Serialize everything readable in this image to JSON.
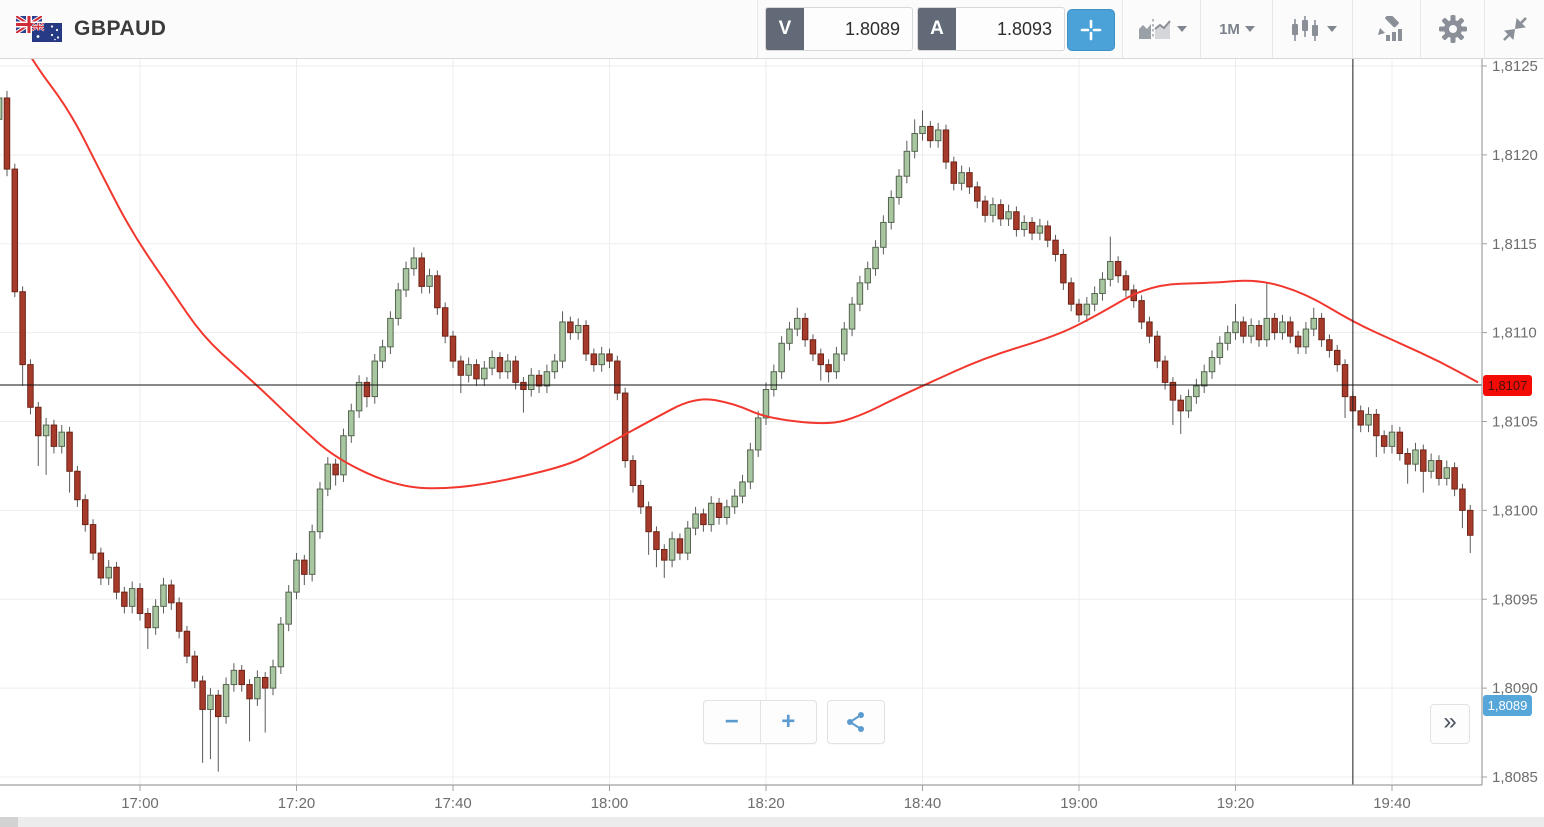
{
  "header": {
    "symbol": "GBPAUD",
    "bid": {
      "label": "V",
      "value": "1.8089"
    },
    "ask": {
      "label": "A",
      "value": "1.8093"
    },
    "timeframe": "1M",
    "accent_color": "#4ba2d8"
  },
  "controls": {
    "zoom_out_label": "−",
    "zoom_in_label": "+",
    "expand_label": "»"
  },
  "chart_data": {
    "type": "candlestick",
    "symbol": "GBPAUD",
    "interval": "1m",
    "start_time": "16:42",
    "price_base": 1.8,
    "unit": "values are pips (0.0001) above 1.8000",
    "ylim": [
      1.8085,
      1.8125
    ],
    "grid": true,
    "y_axis_labels": [
      {
        "pips": 125,
        "text": "1,8125"
      },
      {
        "pips": 120,
        "text": "1,8120"
      },
      {
        "pips": 115,
        "text": "1,8115"
      },
      {
        "pips": 110,
        "text": "1,8110"
      },
      {
        "pips": 105,
        "text": "1,8105"
      },
      {
        "pips": 100,
        "text": "1,8100"
      },
      {
        "pips": 95,
        "text": "1,8095"
      },
      {
        "pips": 90,
        "text": "1,8090"
      },
      {
        "pips": 85,
        "text": "1,8085"
      }
    ],
    "x_axis_labels": [
      {
        "minute": 18,
        "text": "17:00"
      },
      {
        "minute": 38,
        "text": "17:20"
      },
      {
        "minute": 58,
        "text": "17:40"
      },
      {
        "minute": 78,
        "text": "18:00"
      },
      {
        "minute": 98,
        "text": "18:20"
      },
      {
        "minute": 118,
        "text": "18:40"
      },
      {
        "minute": 138,
        "text": "19:00"
      },
      {
        "minute": 158,
        "text": "19:20"
      },
      {
        "minute": 178,
        "text": "19:40"
      }
    ],
    "current_price_line": {
      "pips": 107.05,
      "label": "1,8107",
      "line_color": "#111111",
      "badge_color": "#f50b06"
    },
    "bid_marker": {
      "pips": 89,
      "label": "1,8089",
      "badge_color": "#57a6da"
    },
    "vertical_line_minute": 173,
    "colors": {
      "up_fill": "#a8c7a1",
      "up_stroke": "#55644f",
      "down_fill": "#a73b2b",
      "down_stroke": "#6e2418",
      "wick": "#5a5a5a",
      "ma": "#f2382e",
      "grid": "#ededed",
      "axis": "#a0a0a0",
      "axis_text": "#6e6e6e"
    },
    "ma_line": {
      "name": "moving average",
      "color": "#f2382e",
      "points": [
        [
          0,
          128.5
        ],
        [
          4,
          125.4
        ],
        [
          9,
          122.5
        ],
        [
          13,
          119.0
        ],
        [
          17,
          115.6
        ],
        [
          22,
          112.4
        ],
        [
          26,
          109.8
        ],
        [
          31,
          107.8
        ],
        [
          34,
          106.6
        ],
        [
          38,
          104.9
        ],
        [
          43,
          102.9
        ],
        [
          51,
          101.3
        ],
        [
          58,
          101.2
        ],
        [
          66,
          101.8
        ],
        [
          73,
          102.6
        ],
        [
          76,
          103.3
        ],
        [
          83,
          105.0
        ],
        [
          89,
          106.4
        ],
        [
          94,
          106.0
        ],
        [
          98,
          105.2
        ],
        [
          106,
          104.8
        ],
        [
          110,
          105.3
        ],
        [
          115,
          106.4
        ],
        [
          118,
          107.0
        ],
        [
          126,
          108.6
        ],
        [
          135,
          109.8
        ],
        [
          140,
          110.9
        ],
        [
          147,
          112.7
        ],
        [
          155,
          112.8
        ],
        [
          161,
          113.0
        ],
        [
          167,
          112.2
        ],
        [
          173,
          110.6
        ],
        [
          179,
          109.4
        ],
        [
          184,
          108.4
        ],
        [
          189,
          107.2
        ]
      ]
    },
    "candles_format": "[open, high, low, close] in pips above 1.8000, one candle per minute from start_time",
    "candles": [
      [
        122.0,
        124.2,
        121.2,
        123.2
      ],
      [
        123.2,
        123.6,
        118.8,
        119.2
      ],
      [
        119.2,
        119.5,
        112.0,
        112.3
      ],
      [
        112.3,
        112.6,
        107.0,
        108.2
      ],
      [
        108.2,
        108.5,
        105.4,
        105.8
      ],
      [
        105.8,
        106.1,
        102.5,
        104.2
      ],
      [
        104.2,
        105.2,
        102.0,
        104.8
      ],
      [
        104.8,
        105.1,
        103.2,
        103.6
      ],
      [
        103.6,
        104.8,
        103.2,
        104.4
      ],
      [
        104.4,
        104.7,
        101.0,
        102.2
      ],
      [
        102.2,
        102.5,
        100.2,
        100.6
      ],
      [
        100.6,
        100.9,
        98.8,
        99.2
      ],
      [
        99.2,
        99.5,
        97.2,
        97.6
      ],
      [
        97.6,
        97.9,
        95.8,
        96.2
      ],
      [
        96.2,
        97.2,
        95.8,
        96.8
      ],
      [
        96.8,
        97.1,
        95.0,
        95.4
      ],
      [
        95.4,
        95.7,
        94.2,
        94.6
      ],
      [
        94.6,
        96.0,
        94.2,
        95.6
      ],
      [
        95.6,
        95.9,
        93.8,
        94.2
      ],
      [
        94.2,
        94.5,
        92.2,
        93.4
      ],
      [
        93.4,
        95.0,
        93.0,
        94.6
      ],
      [
        94.6,
        96.2,
        94.2,
        95.8
      ],
      [
        95.8,
        96.1,
        94.4,
        94.8
      ],
      [
        94.8,
        95.1,
        92.8,
        93.2
      ],
      [
        93.2,
        93.5,
        91.4,
        91.8
      ],
      [
        91.8,
        92.1,
        90.0,
        90.4
      ],
      [
        90.4,
        90.7,
        85.8,
        88.8
      ],
      [
        88.8,
        90.0,
        86.0,
        89.6
      ],
      [
        89.6,
        89.9,
        85.3,
        88.4
      ],
      [
        88.4,
        90.6,
        88.0,
        90.2
      ],
      [
        90.2,
        91.4,
        89.8,
        91.0
      ],
      [
        91.0,
        91.3,
        89.8,
        90.2
      ],
      [
        90.2,
        90.5,
        87.0,
        89.4
      ],
      [
        89.4,
        91.0,
        89.0,
        90.6
      ],
      [
        90.6,
        90.9,
        87.5,
        90.0
      ],
      [
        90.0,
        91.6,
        89.6,
        91.2
      ],
      [
        91.2,
        94.0,
        90.8,
        93.6
      ],
      [
        93.6,
        95.8,
        93.2,
        95.4
      ],
      [
        95.4,
        97.6,
        95.0,
        97.2
      ],
      [
        97.2,
        97.5,
        95.8,
        96.4
      ],
      [
        96.4,
        99.2,
        96.0,
        98.8
      ],
      [
        98.8,
        101.6,
        98.4,
        101.2
      ],
      [
        101.2,
        103.0,
        100.8,
        102.6
      ],
      [
        102.6,
        102.9,
        101.4,
        102.0
      ],
      [
        102.0,
        104.6,
        101.6,
        104.2
      ],
      [
        104.2,
        106.0,
        103.8,
        105.6
      ],
      [
        105.6,
        107.6,
        105.2,
        107.2
      ],
      [
        107.2,
        107.5,
        105.8,
        106.4
      ],
      [
        106.4,
        108.8,
        106.0,
        108.4
      ],
      [
        108.4,
        109.6,
        108.0,
        109.2
      ],
      [
        109.2,
        111.2,
        108.8,
        110.8
      ],
      [
        110.8,
        112.8,
        110.4,
        112.4
      ],
      [
        112.4,
        114.0,
        112.0,
        113.6
      ],
      [
        113.6,
        114.8,
        113.2,
        114.2
      ],
      [
        114.2,
        114.5,
        112.2,
        112.6
      ],
      [
        112.6,
        113.6,
        112.2,
        113.2
      ],
      [
        113.2,
        113.5,
        111.0,
        111.4
      ],
      [
        111.4,
        111.7,
        109.4,
        109.8
      ],
      [
        109.8,
        110.1,
        108.0,
        108.4
      ],
      [
        108.4,
        108.7,
        106.6,
        107.6
      ],
      [
        107.6,
        108.6,
        107.2,
        108.2
      ],
      [
        108.2,
        108.5,
        107.0,
        107.4
      ],
      [
        107.4,
        108.4,
        107.0,
        108.0
      ],
      [
        108.0,
        109.0,
        107.6,
        108.6
      ],
      [
        108.6,
        108.9,
        107.4,
        107.8
      ],
      [
        107.8,
        108.8,
        107.4,
        108.4
      ],
      [
        108.4,
        108.7,
        106.8,
        107.2
      ],
      [
        107.2,
        107.5,
        105.5,
        106.8
      ],
      [
        106.8,
        108.0,
        106.4,
        107.6
      ],
      [
        107.6,
        107.9,
        106.6,
        107.0
      ],
      [
        107.0,
        108.2,
        106.6,
        107.8
      ],
      [
        107.8,
        108.8,
        107.4,
        108.4
      ],
      [
        108.4,
        111.2,
        108.0,
        110.6
      ],
      [
        110.6,
        110.9,
        109.6,
        110.0
      ],
      [
        110.0,
        110.8,
        109.6,
        110.4
      ],
      [
        110.4,
        110.7,
        108.4,
        108.8
      ],
      [
        108.8,
        109.1,
        107.8,
        108.2
      ],
      [
        108.2,
        109.2,
        107.8,
        108.8
      ],
      [
        108.8,
        109.1,
        108.0,
        108.4
      ],
      [
        108.4,
        108.7,
        106.2,
        106.6
      ],
      [
        106.6,
        106.9,
        102.4,
        102.8
      ],
      [
        102.8,
        103.1,
        101.0,
        101.4
      ],
      [
        101.4,
        101.7,
        99.8,
        100.2
      ],
      [
        100.2,
        100.5,
        97.5,
        98.8
      ],
      [
        98.8,
        99.1,
        96.8,
        97.8
      ],
      [
        97.8,
        98.1,
        96.2,
        97.2
      ],
      [
        97.2,
        98.8,
        96.8,
        98.4
      ],
      [
        98.4,
        98.7,
        97.2,
        97.6
      ],
      [
        97.6,
        99.4,
        97.2,
        99.0
      ],
      [
        99.0,
        100.2,
        98.6,
        99.8
      ],
      [
        99.8,
        100.1,
        98.8,
        99.2
      ],
      [
        99.2,
        100.8,
        98.8,
        100.4
      ],
      [
        100.4,
        100.7,
        99.2,
        99.6
      ],
      [
        99.6,
        100.6,
        99.2,
        100.2
      ],
      [
        100.2,
        101.2,
        99.8,
        100.8
      ],
      [
        100.8,
        102.0,
        100.4,
        101.6
      ],
      [
        101.6,
        103.8,
        101.2,
        103.4
      ],
      [
        103.4,
        105.6,
        103.0,
        105.2
      ],
      [
        105.2,
        107.2,
        104.8,
        106.8
      ],
      [
        106.8,
        108.2,
        106.4,
        107.8
      ],
      [
        107.8,
        109.8,
        107.4,
        109.4
      ],
      [
        109.4,
        110.6,
        109.0,
        110.2
      ],
      [
        110.2,
        111.4,
        109.8,
        110.8
      ],
      [
        110.8,
        111.1,
        109.2,
        109.6
      ],
      [
        109.6,
        109.9,
        108.4,
        108.8
      ],
      [
        108.8,
        109.1,
        107.3,
        108.2
      ],
      [
        108.2,
        108.5,
        107.2,
        107.8
      ],
      [
        107.8,
        109.2,
        107.4,
        108.8
      ],
      [
        108.8,
        110.6,
        108.4,
        110.2
      ],
      [
        110.2,
        112.0,
        109.8,
        111.6
      ],
      [
        111.6,
        113.2,
        111.2,
        112.8
      ],
      [
        112.8,
        114.0,
        112.4,
        113.6
      ],
      [
        113.6,
        115.2,
        113.2,
        114.8
      ],
      [
        114.8,
        116.6,
        114.4,
        116.2
      ],
      [
        116.2,
        118.0,
        115.8,
        117.6
      ],
      [
        117.6,
        119.2,
        117.2,
        118.8
      ],
      [
        118.8,
        120.8,
        118.4,
        120.2
      ],
      [
        120.2,
        122.0,
        119.8,
        121.2
      ],
      [
        121.2,
        122.5,
        120.8,
        121.6
      ],
      [
        121.6,
        121.9,
        120.4,
        120.8
      ],
      [
        120.8,
        121.8,
        120.4,
        121.4
      ],
      [
        121.4,
        121.7,
        119.2,
        119.6
      ],
      [
        119.6,
        119.9,
        118.0,
        118.4
      ],
      [
        118.4,
        119.4,
        118.0,
        119.0
      ],
      [
        119.0,
        119.3,
        117.8,
        118.2
      ],
      [
        118.2,
        118.5,
        117.0,
        117.4
      ],
      [
        117.4,
        117.7,
        116.2,
        116.6
      ],
      [
        116.6,
        117.6,
        116.2,
        117.2
      ],
      [
        117.2,
        117.5,
        116.0,
        116.4
      ],
      [
        116.4,
        117.2,
        116.0,
        116.8
      ],
      [
        116.8,
        117.1,
        115.4,
        115.8
      ],
      [
        115.8,
        116.6,
        115.4,
        116.2
      ],
      [
        116.2,
        116.5,
        115.2,
        115.6
      ],
      [
        115.6,
        116.4,
        115.2,
        116.0
      ],
      [
        116.0,
        116.3,
        114.8,
        115.2
      ],
      [
        115.2,
        115.5,
        114.0,
        114.4
      ],
      [
        114.4,
        114.7,
        112.4,
        112.8
      ],
      [
        112.8,
        113.1,
        111.2,
        111.6
      ],
      [
        111.6,
        111.9,
        110.6,
        111.0
      ],
      [
        111.0,
        112.0,
        110.6,
        111.6
      ],
      [
        111.6,
        112.6,
        111.2,
        112.2
      ],
      [
        112.2,
        113.4,
        111.8,
        113.0
      ],
      [
        113.0,
        115.4,
        112.6,
        114.0
      ],
      [
        114.0,
        114.3,
        112.8,
        113.2
      ],
      [
        113.2,
        113.5,
        112.0,
        112.4
      ],
      [
        112.4,
        112.7,
        111.4,
        111.8
      ],
      [
        111.8,
        112.1,
        110.2,
        110.6
      ],
      [
        110.6,
        110.9,
        109.4,
        109.8
      ],
      [
        109.8,
        110.1,
        108.0,
        108.4
      ],
      [
        108.4,
        108.7,
        106.8,
        107.2
      ],
      [
        107.2,
        107.5,
        104.8,
        106.2
      ],
      [
        106.2,
        106.5,
        104.3,
        105.6
      ],
      [
        105.6,
        106.8,
        105.2,
        106.4
      ],
      [
        106.4,
        107.4,
        106.0,
        107.0
      ],
      [
        107.0,
        108.2,
        106.6,
        107.8
      ],
      [
        107.8,
        109.0,
        107.4,
        108.6
      ],
      [
        108.6,
        109.8,
        108.2,
        109.4
      ],
      [
        109.4,
        110.4,
        109.0,
        110.0
      ],
      [
        110.0,
        111.6,
        109.6,
        110.6
      ],
      [
        110.6,
        110.9,
        109.4,
        109.8
      ],
      [
        109.8,
        110.8,
        109.4,
        110.4
      ],
      [
        110.4,
        110.7,
        109.2,
        109.6
      ],
      [
        109.6,
        112.8,
        109.2,
        110.8
      ],
      [
        110.8,
        111.1,
        109.6,
        110.0
      ],
      [
        110.0,
        111.0,
        109.6,
        110.6
      ],
      [
        110.6,
        110.9,
        109.4,
        109.8
      ],
      [
        109.8,
        110.1,
        108.8,
        109.2
      ],
      [
        109.2,
        110.6,
        108.8,
        110.2
      ],
      [
        110.2,
        111.4,
        109.8,
        110.8
      ],
      [
        110.8,
        111.1,
        109.2,
        109.6
      ],
      [
        109.6,
        109.9,
        108.6,
        109.0
      ],
      [
        109.0,
        109.3,
        107.8,
        108.2
      ],
      [
        108.2,
        108.5,
        105.2,
        106.4
      ],
      [
        106.4,
        106.7,
        104.6,
        105.6
      ],
      [
        105.6,
        105.9,
        104.4,
        104.8
      ],
      [
        104.8,
        105.8,
        104.4,
        105.4
      ],
      [
        105.4,
        105.7,
        103.0,
        104.2
      ],
      [
        104.2,
        104.5,
        103.2,
        103.6
      ],
      [
        103.6,
        104.8,
        103.2,
        104.4
      ],
      [
        104.4,
        104.7,
        102.8,
        103.2
      ],
      [
        103.2,
        103.5,
        101.5,
        102.6
      ],
      [
        102.6,
        103.8,
        102.2,
        103.4
      ],
      [
        103.4,
        103.7,
        101.0,
        102.2
      ],
      [
        102.2,
        103.2,
        101.8,
        102.8
      ],
      [
        102.8,
        103.1,
        101.4,
        101.8
      ],
      [
        101.8,
        102.8,
        101.4,
        102.4
      ],
      [
        102.4,
        102.7,
        100.8,
        101.2
      ],
      [
        101.2,
        101.5,
        99.0,
        100.0
      ],
      [
        100.0,
        100.3,
        97.6,
        98.6
      ]
    ]
  }
}
